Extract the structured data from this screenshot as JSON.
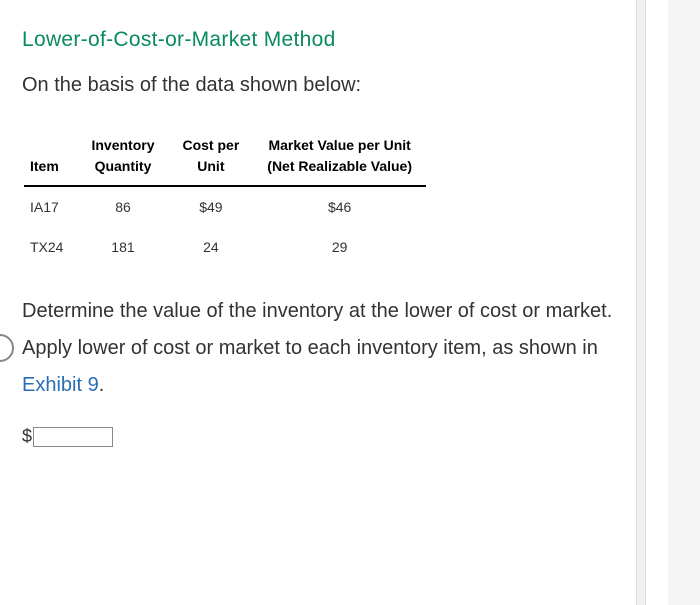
{
  "title": "Lower-of-Cost-or-Market Method",
  "intro": "On the basis of the data shown below:",
  "table": {
    "columns": [
      {
        "line1": "",
        "line2": "Item"
      },
      {
        "line1": "Inventory",
        "line2": "Quantity"
      },
      {
        "line1": "Cost per",
        "line2": "Unit"
      },
      {
        "line1": "Market Value per Unit",
        "line2": "(Net Realizable Value)"
      }
    ],
    "rows": [
      {
        "item": "IA17",
        "qty": "86",
        "cost": "$49",
        "market": "$46"
      },
      {
        "item": "TX24",
        "qty": "181",
        "cost": "24",
        "market": "29"
      }
    ]
  },
  "instruction": {
    "text_before": "Determine the value of the inventory at the lower of cost or market. Apply lower of cost or market to each inventory item, as shown in ",
    "link_text": "Exhibit 9",
    "text_after": "."
  },
  "answer": {
    "currency": "$",
    "value": ""
  },
  "colors": {
    "title": "#0a8a5f",
    "link": "#2a6db5",
    "text": "#333333",
    "table_border": "#000000",
    "page_bg": "#ffffff",
    "outer_bg": "#f5f5f5"
  }
}
